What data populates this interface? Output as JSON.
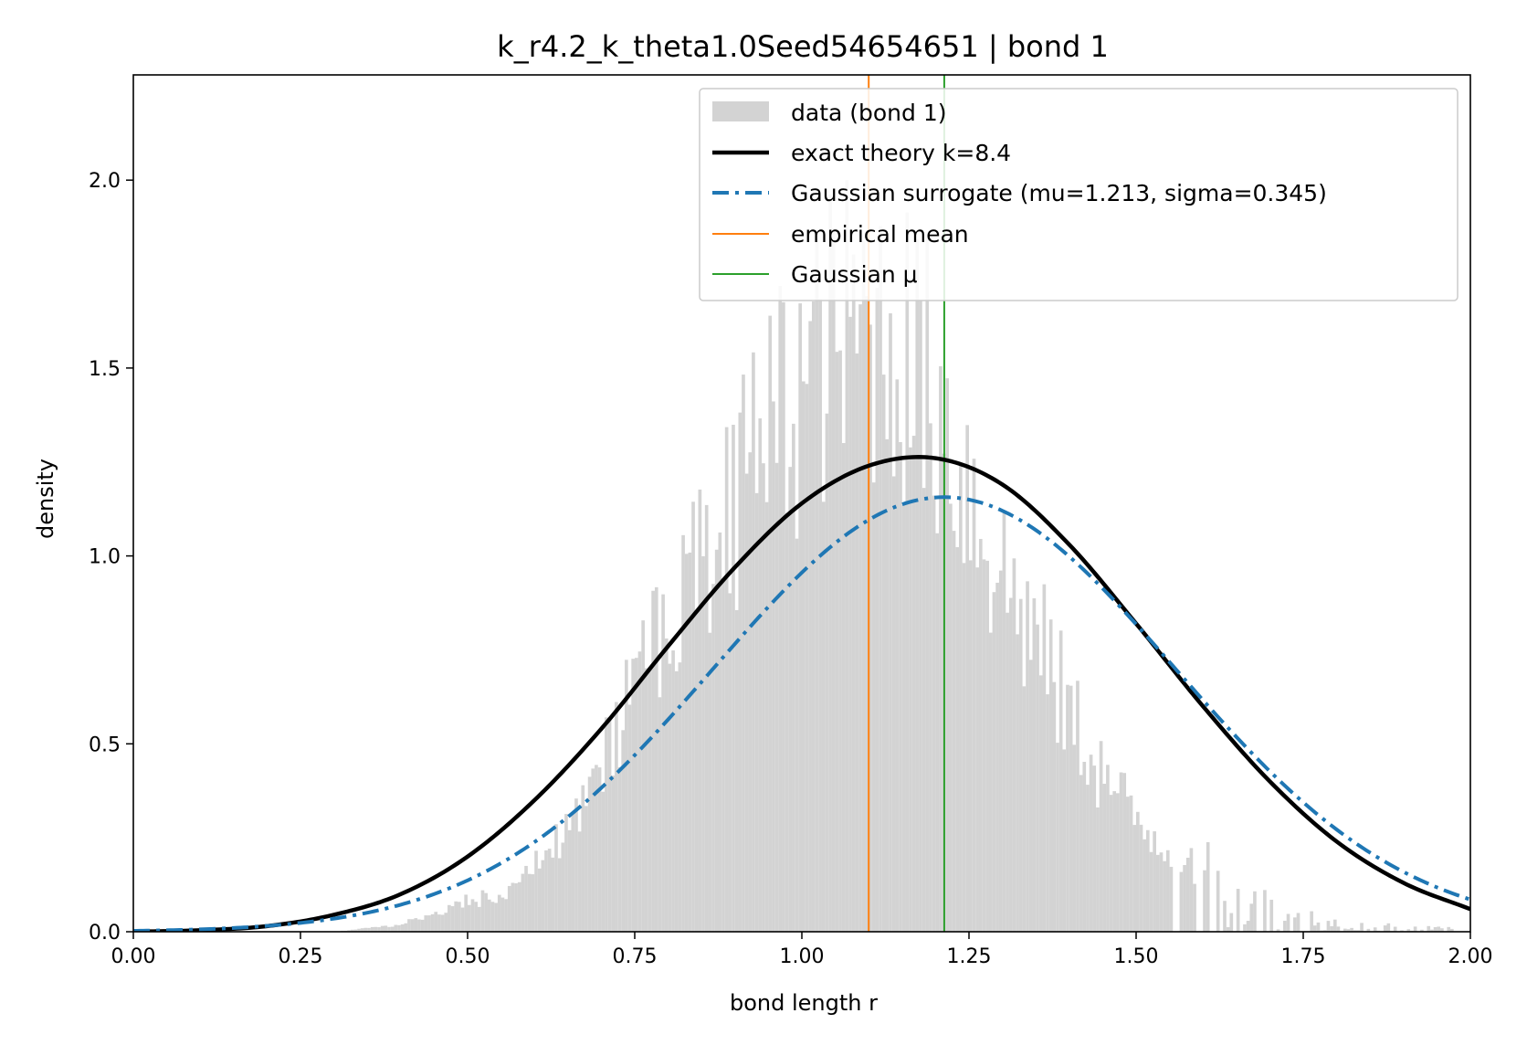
{
  "chart_data": {
    "type": "histogram",
    "title": "k_r4.2_k_theta1.0Seed54654651 | bond 1",
    "xlabel": "bond length r",
    "ylabel": "density",
    "xlim": [
      0.0,
      2.0
    ],
    "ylim": [
      0.0,
      2.28
    ],
    "x_ticks": [
      "0.00",
      "0.25",
      "0.50",
      "0.75",
      "1.00",
      "1.25",
      "1.50",
      "1.75",
      "2.00"
    ],
    "y_ticks": [
      "0.0",
      "0.5",
      "1.0",
      "1.5",
      "2.0"
    ],
    "x_tick_values": [
      0.0,
      0.25,
      0.5,
      0.75,
      1.0,
      1.25,
      1.5,
      1.75,
      2.0
    ],
    "y_tick_values": [
      0.0,
      0.5,
      1.0,
      1.5,
      2.0
    ],
    "legend": {
      "location": "upper right",
      "entries": [
        "data (bond 1)",
        "exact theory k=8.4",
        "Gaussian surrogate (mu=1.213, sigma=0.345)",
        "empirical mean",
        "Gaussian μ"
      ]
    },
    "histogram_envelope": {
      "name": "data (bond 1)",
      "color": "#d3d3d3",
      "bin_width": 0.005,
      "x": [
        0.3,
        0.4,
        0.45,
        0.5,
        0.55,
        0.6,
        0.65,
        0.7,
        0.75,
        0.8,
        0.85,
        0.9,
        0.95,
        1.0,
        1.05,
        1.1,
        1.15,
        1.2,
        1.25,
        1.3,
        1.35,
        1.4,
        1.45,
        1.5,
        1.55,
        1.6,
        1.65,
        1.7,
        1.75,
        1.8,
        1.85,
        1.9,
        2.0
      ],
      "y": [
        0.0,
        0.02,
        0.05,
        0.08,
        0.1,
        0.18,
        0.28,
        0.45,
        0.62,
        0.8,
        1.0,
        1.18,
        1.34,
        1.46,
        1.58,
        1.62,
        1.56,
        1.42,
        1.18,
        0.95,
        0.78,
        0.58,
        0.42,
        0.3,
        0.22,
        0.15,
        0.09,
        0.06,
        0.04,
        0.02,
        0.015,
        0.01,
        0.005
      ]
    },
    "series": [
      {
        "name": "exact theory k=8.4",
        "style": "solid",
        "color": "#000000",
        "x": [
          0.0,
          0.1,
          0.2,
          0.3,
          0.4,
          0.5,
          0.6,
          0.7,
          0.8,
          0.9,
          1.0,
          1.1,
          1.2,
          1.3,
          1.4,
          1.5,
          1.6,
          1.7,
          1.8,
          1.9,
          2.0
        ],
        "y": [
          0.0,
          0.004,
          0.015,
          0.045,
          0.1,
          0.2,
          0.35,
          0.54,
          0.76,
          0.97,
          1.14,
          1.24,
          1.26,
          1.19,
          1.03,
          0.82,
          0.6,
          0.4,
          0.24,
          0.13,
          0.06
        ]
      },
      {
        "name": "Gaussian surrogate (mu=1.213, sigma=0.345)",
        "style": "dash-dot",
        "color": "#1f77b4",
        "mu": 1.213,
        "sigma": 0.345
      }
    ],
    "vlines": [
      {
        "name": "empirical mean",
        "x": 1.1,
        "color": "#ff7f0e"
      },
      {
        "name": "Gaussian μ",
        "x": 1.213,
        "color": "#2ca02c"
      }
    ]
  }
}
